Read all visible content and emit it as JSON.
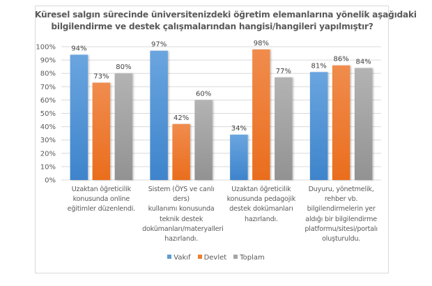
{
  "chart_data": {
    "type": "bar",
    "title_lines": [
      "Küresel salgın sürecinde üniversitenizdeki öğretim elemanlarına yönelik aşağıdaki",
      "bilgilendirme ve destek çalışmalarından hangisi/hangileri yapılmıştır?"
    ],
    "categories": [
      [
        "Uzaktan öğreticilik",
        "konusunda online",
        "eğitimler düzenlendi."
      ],
      [
        "Sistem (ÖYS ve canlı ders)",
        "kullanımı konusunda",
        "teknik destek",
        "dokümanları/materyalleri",
        "hazırlandı."
      ],
      [
        "Uzaktan öğreticilik",
        "konusunda pedagojik",
        "destek dokümanları",
        "hazırlandı."
      ],
      [
        "Duyuru, yönetmelik,",
        "rehber vb.",
        "bilgilendirmelerin yer",
        "aldığı bir bilgilendirme",
        "platformu/sitesi/portalı",
        "oluşturuldu."
      ]
    ],
    "series": [
      {
        "name": "Vakıf",
        "values": [
          94,
          97,
          34,
          81
        ],
        "color": "#5b9bd5",
        "color_top": "#6aa5df",
        "color_bottom": "#3e84cb"
      },
      {
        "name": "Devlet",
        "values": [
          73,
          42,
          98,
          86
        ],
        "color": "#ed7d31",
        "color_top": "#f08c4d",
        "color_bottom": "#ea6d1d"
      },
      {
        "name": "Toplam",
        "values": [
          80,
          60,
          77,
          84
        ],
        "color": "#a5a5a5",
        "color_top": "#b3b3b3",
        "color_bottom": "#929292"
      }
    ],
    "value_suffix": "%",
    "ylim": [
      0,
      100
    ],
    "yticks": [
      0,
      10,
      20,
      30,
      40,
      50,
      60,
      70,
      80,
      90,
      100
    ],
    "ytick_labels": [
      "0%",
      "10%",
      "20%",
      "30%",
      "40%",
      "50%",
      "60%",
      "70%",
      "80%",
      "90%",
      "100%"
    ],
    "xlabel": "",
    "ylabel": "",
    "grid": true,
    "legend_position": "bottom"
  }
}
